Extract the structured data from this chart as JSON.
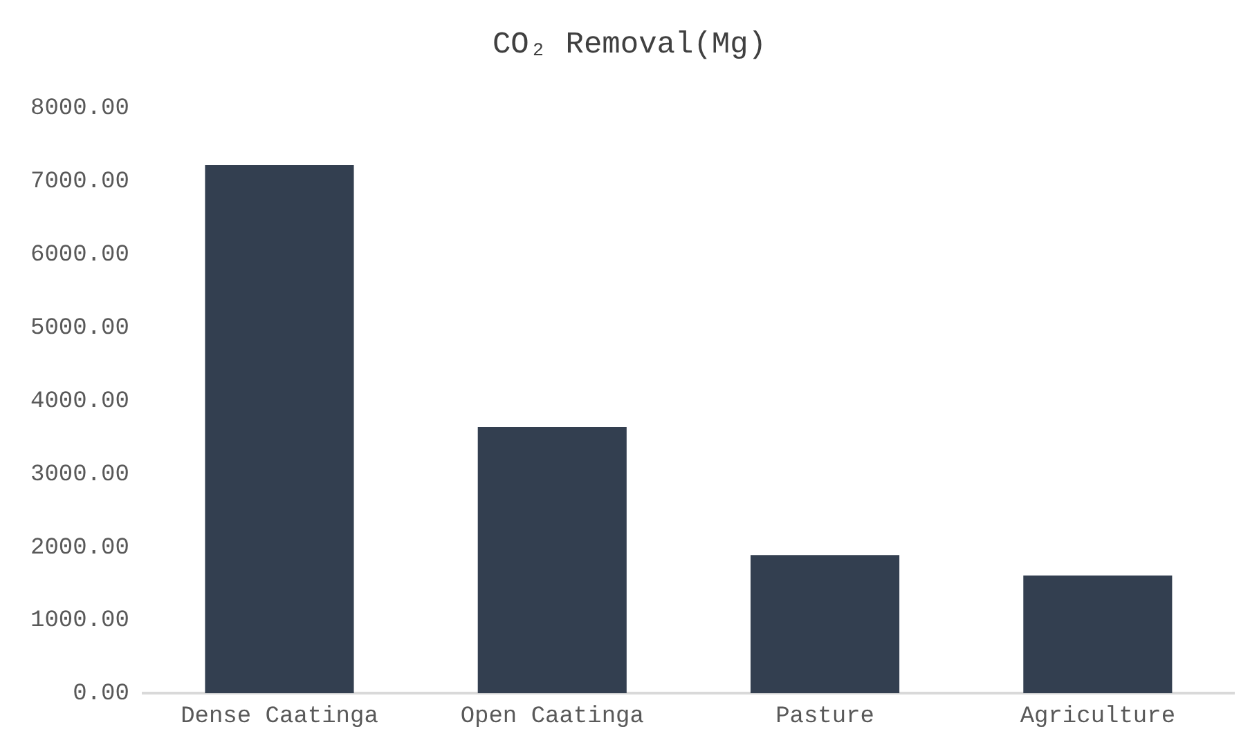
{
  "chart_data": {
    "type": "bar",
    "title": "CO₂ Removal(Mg)",
    "categories": [
      "Dense Caatinga",
      "Open Caatinga",
      "Pasture",
      "Agriculture"
    ],
    "values": [
      7220,
      3640,
      1890,
      1610
    ],
    "color": "#333f50",
    "ylim": [
      0,
      8000
    ],
    "yticks": [
      {
        "value": 0,
        "label": "0.00"
      },
      {
        "value": 1000,
        "label": "1000.00"
      },
      {
        "value": 2000,
        "label": "2000.00"
      },
      {
        "value": 3000,
        "label": "3000.00"
      },
      {
        "value": 4000,
        "label": "4000.00"
      },
      {
        "value": 5000,
        "label": "5000.00"
      },
      {
        "value": 6000,
        "label": "6000.00"
      },
      {
        "value": 7000,
        "label": "7000.00"
      },
      {
        "value": 8000,
        "label": "8000.00"
      }
    ],
    "grid": false,
    "legend": false
  }
}
